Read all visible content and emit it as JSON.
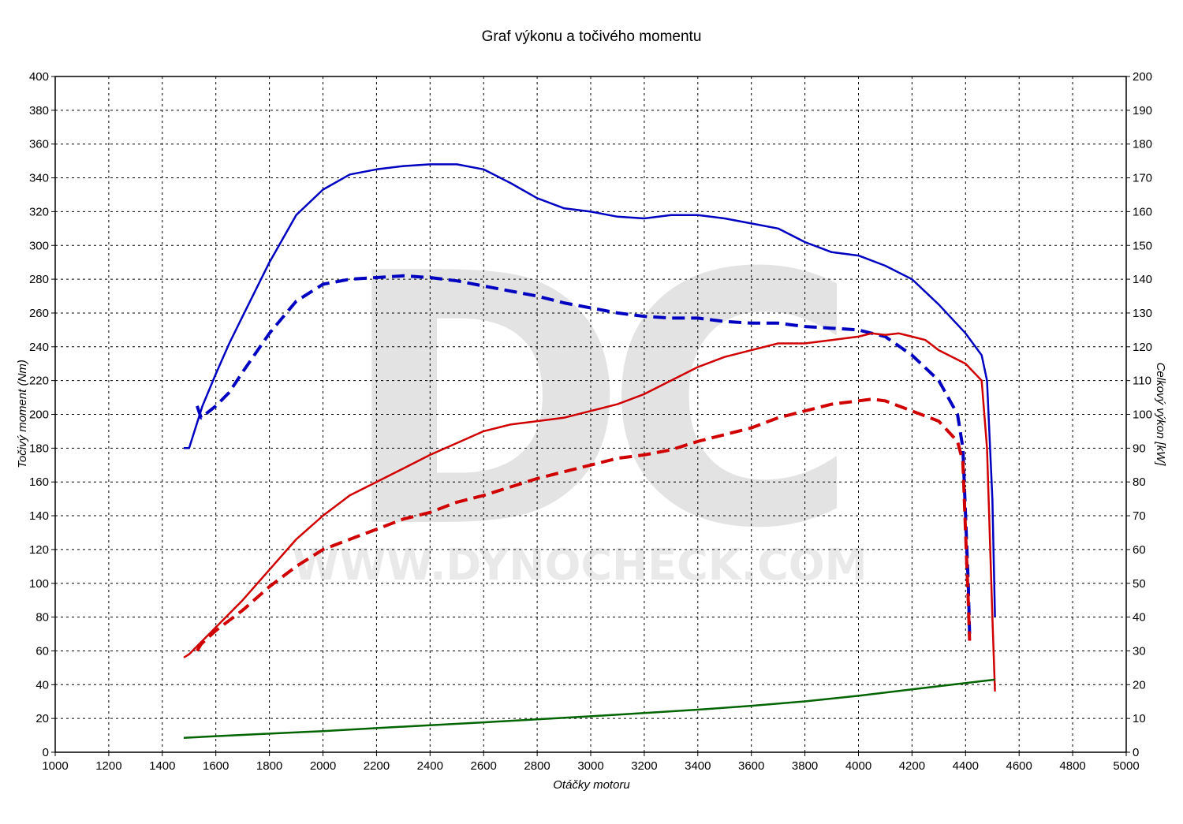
{
  "chart_data": {
    "type": "line",
    "title": "Graf výkonu a točivého momentu",
    "xlabel": "Otáčky motoru",
    "ylabel_left": "Točivý moment (Nm)",
    "ylabel_right": "Celkový výkon [kW]",
    "xlim": [
      1000,
      5000
    ],
    "ylim_left": [
      0,
      400
    ],
    "ylim_right": [
      0,
      200
    ],
    "x_ticks": [
      1000,
      1200,
      1400,
      1600,
      1800,
      2000,
      2200,
      2400,
      2600,
      2800,
      3000,
      3200,
      3400,
      3600,
      3800,
      4000,
      4200,
      4400,
      4600,
      4800,
      5000
    ],
    "y_ticks_left": [
      0,
      20,
      40,
      60,
      80,
      100,
      120,
      140,
      160,
      180,
      200,
      220,
      240,
      260,
      280,
      300,
      320,
      340,
      360,
      380,
      400
    ],
    "y_ticks_right": [
      0,
      10,
      20,
      30,
      40,
      50,
      60,
      70,
      80,
      90,
      100,
      110,
      120,
      130,
      140,
      150,
      160,
      170,
      180,
      190,
      200
    ],
    "grid": true,
    "watermark": {
      "logo": "DC",
      "url": "WWW.DYNOCHECK.COM"
    },
    "series": [
      {
        "axis": "left",
        "color": "#0000c0",
        "style": "solid",
        "x": [
          1480,
          1500,
          1550,
          1600,
          1650,
          1700,
          1800,
          1900,
          2000,
          2100,
          2200,
          2300,
          2400,
          2500,
          2600,
          2700,
          2800,
          2900,
          3000,
          3100,
          3200,
          3300,
          3400,
          3500,
          3600,
          3700,
          3800,
          3900,
          4000,
          4100,
          4200,
          4300,
          4400,
          4460,
          4480,
          4500,
          4510
        ],
        "y": [
          180,
          180,
          205,
          224,
          242,
          258,
          290,
          318,
          333,
          342,
          345,
          347,
          348,
          348,
          345,
          337,
          328,
          322,
          320,
          317,
          316,
          318,
          318,
          316,
          313,
          310,
          302,
          296,
          294,
          288,
          280,
          265,
          248,
          235,
          220,
          150,
          80
        ]
      },
      {
        "axis": "left",
        "color": "#0000c0",
        "style": "dashed",
        "x": [
          1530,
          1545,
          1600,
          1650,
          1700,
          1800,
          1900,
          2000,
          2100,
          2200,
          2300,
          2400,
          2500,
          2600,
          2700,
          2800,
          2900,
          3000,
          3100,
          3200,
          3300,
          3400,
          3500,
          3600,
          3700,
          3800,
          3900,
          4000,
          4100,
          4200,
          4300,
          4370,
          4390,
          4400,
          4410,
          4415
        ],
        "y": [
          205,
          198,
          205,
          213,
          225,
          248,
          267,
          277,
          280,
          281,
          282,
          281,
          279,
          276,
          273,
          270,
          266,
          263,
          260,
          258,
          257,
          257,
          255,
          254,
          254,
          252,
          251,
          250,
          246,
          235,
          220,
          200,
          180,
          140,
          100,
          70
        ]
      },
      {
        "axis": "right",
        "color": "#d00000",
        "style": "solid",
        "x": [
          1480,
          1500,
          1550,
          1600,
          1700,
          1800,
          1900,
          2000,
          2100,
          2200,
          2300,
          2400,
          2500,
          2600,
          2700,
          2800,
          2900,
          3000,
          3100,
          3200,
          3300,
          3400,
          3500,
          3600,
          3700,
          3800,
          3900,
          4000,
          4050,
          4100,
          4150,
          4200,
          4250,
          4300,
          4400,
          4460,
          4480,
          4500,
          4510
        ],
        "y": [
          28,
          29,
          33,
          37,
          45,
          54,
          63,
          70,
          76,
          80,
          84,
          88,
          91.5,
          95,
          97,
          98,
          99,
          101,
          103,
          106,
          110,
          114,
          117,
          119,
          121,
          121,
          122,
          123,
          124,
          123.5,
          124,
          123,
          122,
          119,
          115,
          110,
          90,
          40,
          18
        ]
      },
      {
        "axis": "right",
        "color": "#d00000",
        "style": "dashed",
        "x": [
          1530,
          1545,
          1600,
          1700,
          1800,
          1900,
          2000,
          2100,
          2200,
          2300,
          2400,
          2500,
          2600,
          2700,
          2800,
          2900,
          3000,
          3100,
          3200,
          3300,
          3400,
          3500,
          3600,
          3700,
          3800,
          3900,
          4000,
          4050,
          4100,
          4200,
          4300,
          4370,
          4390,
          4400,
          4410,
          4415
        ],
        "y": [
          30,
          32,
          36,
          42,
          49,
          55,
          60,
          63,
          66,
          69,
          71,
          74,
          76,
          78.5,
          81,
          83,
          85,
          87,
          88,
          89.5,
          92,
          94,
          96,
          99,
          101,
          103,
          104,
          104.5,
          104,
          101,
          98,
          92,
          86,
          65,
          45,
          33
        ]
      },
      {
        "axis": "left",
        "color": "#006400",
        "style": "solid",
        "x": [
          1480,
          1600,
          1800,
          2000,
          2200,
          2400,
          2600,
          2800,
          3000,
          3200,
          3400,
          3600,
          3800,
          4000,
          4200,
          4400,
          4510
        ],
        "y": [
          8.5,
          9.5,
          11,
          12.5,
          14.3,
          16,
          17.7,
          19.5,
          21.3,
          23.2,
          25.2,
          27.5,
          30.1,
          33.4,
          37.2,
          41,
          43
        ]
      }
    ]
  }
}
